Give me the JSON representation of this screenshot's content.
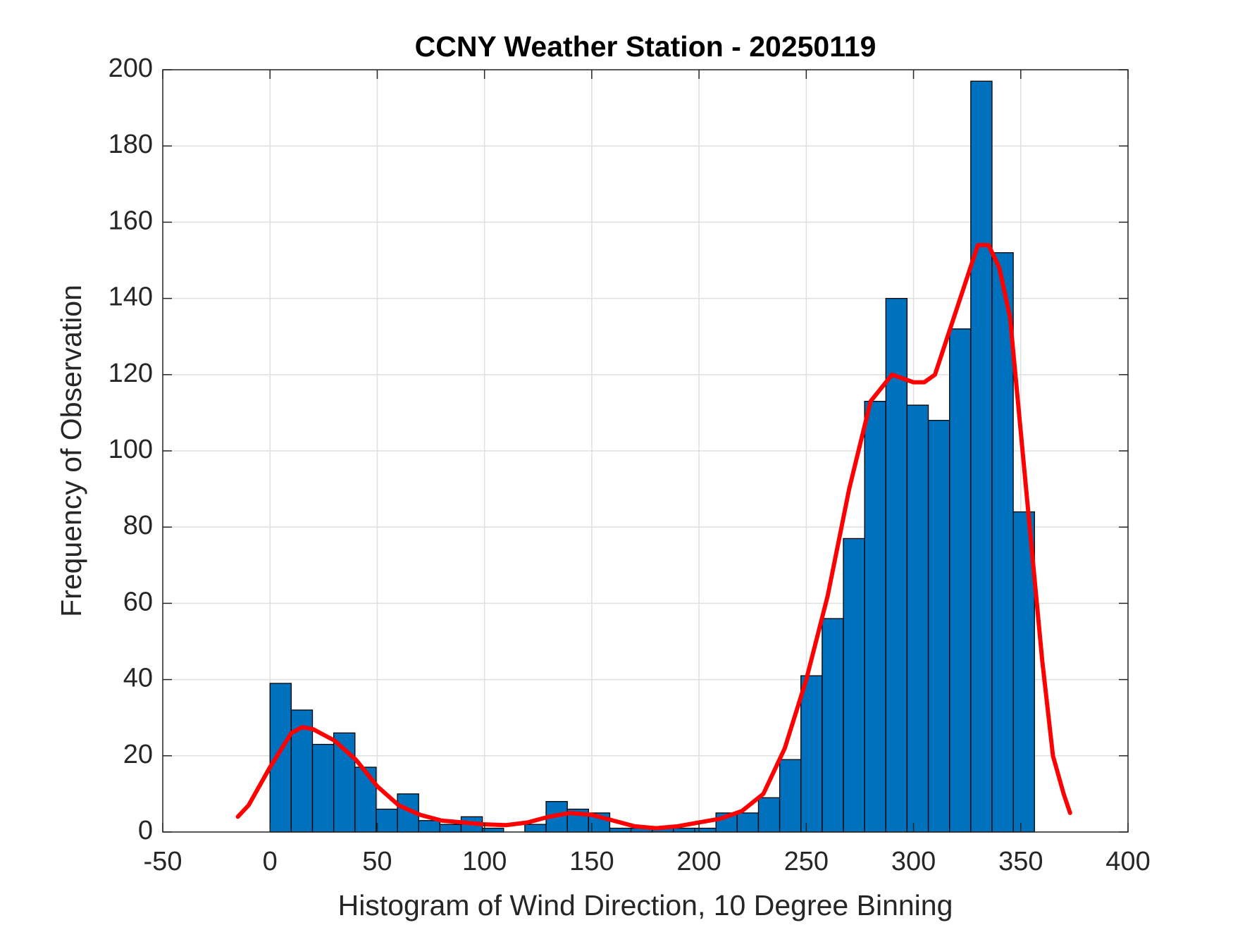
{
  "chart_data": {
    "type": "histogram",
    "title": "CCNY Weather Station - 20250119",
    "xlabel": "Histogram of Wind Direction, 10 Degree Binning",
    "ylabel": "Frequency of Observation",
    "bins": [
      0,
      9.9,
      19.8,
      29.7,
      39.6,
      49.5,
      59.4,
      69.3,
      79.2,
      89.1,
      99,
      108.9,
      118.8,
      128.7,
      138.6,
      148.5,
      158.4,
      168.3,
      178.2,
      188.1,
      198,
      207.9,
      217.8,
      227.7,
      237.6,
      247.5,
      257.4,
      267.3,
      277.2,
      287.1,
      297,
      306.9,
      316.8,
      326.7,
      336.6,
      346.5,
      356.4
    ],
    "values": [
      39,
      32,
      23,
      26,
      17,
      6,
      10,
      3,
      2,
      4,
      1,
      0,
      2,
      8,
      6,
      5,
      1,
      1,
      1,
      1,
      1,
      5,
      5,
      9,
      19,
      41,
      56,
      77,
      113,
      140,
      112,
      108,
      132,
      197,
      152,
      84
    ],
    "color": "#0072bd",
    "kde": {
      "color": "#ff0000",
      "x": [
        -15,
        -10,
        0,
        10,
        15,
        20,
        30,
        40,
        50,
        60,
        70,
        80,
        90,
        100,
        110,
        120,
        130,
        140,
        150,
        160,
        170,
        180,
        190,
        200,
        210,
        220,
        230,
        240,
        250,
        260,
        270,
        280,
        290,
        300,
        305,
        310,
        320,
        330,
        335,
        340,
        345,
        350,
        355,
        360,
        365,
        370,
        373
      ],
      "values": [
        4,
        7,
        17,
        26,
        27.5,
        27,
        24,
        19,
        12,
        7,
        4.5,
        3,
        2.5,
        2,
        1.8,
        2.5,
        4,
        5,
        4.5,
        3,
        1.5,
        1,
        1.5,
        2.5,
        3.5,
        5.5,
        10,
        22,
        40,
        62,
        90,
        113,
        120,
        118,
        118,
        120,
        137,
        154,
        154,
        148,
        135,
        105,
        75,
        45,
        20,
        10,
        5
      ]
    },
    "xlim": [
      -50,
      400
    ],
    "xticks": [
      -50,
      0,
      50,
      100,
      150,
      200,
      250,
      300,
      350,
      400
    ],
    "ylim": [
      0,
      200
    ],
    "yticks": [
      0,
      20,
      40,
      60,
      80,
      100,
      120,
      140,
      160,
      180,
      200
    ],
    "grid": true
  }
}
